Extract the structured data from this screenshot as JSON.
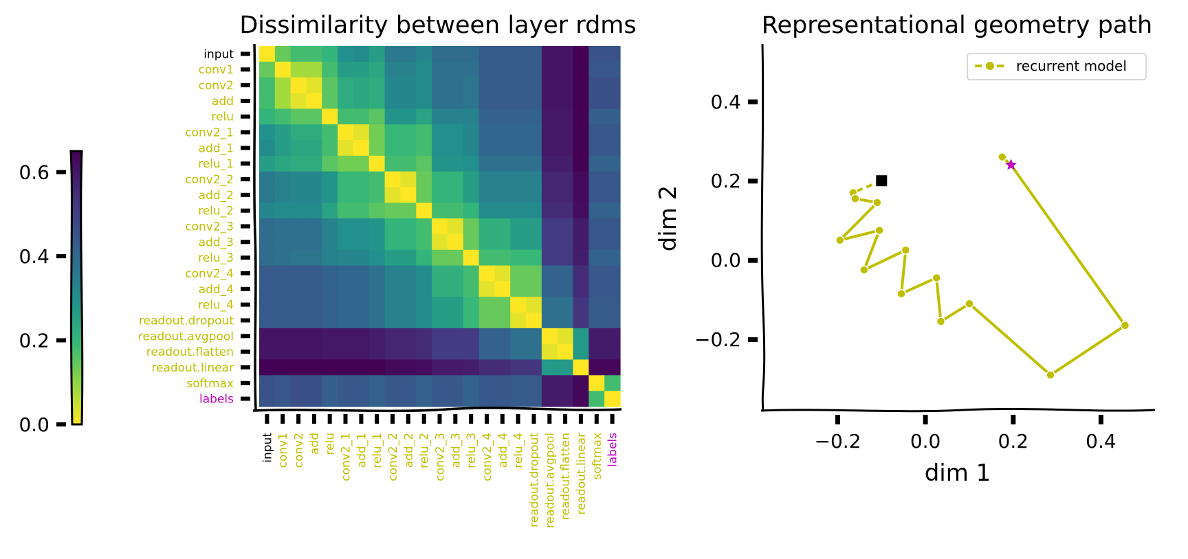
{
  "chart_data": [
    {
      "type": "heatmap",
      "title": "Dissimilarity between layer rdms",
      "labels": [
        "input",
        "conv1",
        "conv2",
        "add",
        "relu",
        "conv2_1",
        "add_1",
        "relu_1",
        "conv2_2",
        "add_2",
        "relu_2",
        "conv2_3",
        "add_3",
        "relu_3",
        "conv2_4",
        "add_4",
        "relu_4",
        "readout.dropout",
        "readout.avgpool",
        "readout.flatten",
        "readout.linear",
        "softmax",
        "labels"
      ],
      "label_colors": [
        "#000000",
        "#bfbf00",
        "#bfbf00",
        "#bfbf00",
        "#bfbf00",
        "#bfbf00",
        "#bfbf00",
        "#bfbf00",
        "#bfbf00",
        "#bfbf00",
        "#bfbf00",
        "#bfbf00",
        "#bfbf00",
        "#bfbf00",
        "#bfbf00",
        "#bfbf00",
        "#bfbf00",
        "#bfbf00",
        "#bfbf00",
        "#bfbf00",
        "#bfbf00",
        "#bfbf00",
        "#bf00bf"
      ],
      "values": [
        [
          0.0,
          0.12,
          0.15,
          0.15,
          0.17,
          0.25,
          0.26,
          0.22,
          0.3,
          0.3,
          0.27,
          0.33,
          0.33,
          0.33,
          0.37,
          0.37,
          0.37,
          0.37,
          0.58,
          0.58,
          0.66,
          0.39,
          0.39
        ],
        [
          0.12,
          0.0,
          0.07,
          0.07,
          0.15,
          0.22,
          0.22,
          0.2,
          0.28,
          0.28,
          0.26,
          0.32,
          0.32,
          0.32,
          0.37,
          0.37,
          0.37,
          0.37,
          0.58,
          0.58,
          0.67,
          0.38,
          0.38
        ],
        [
          0.15,
          0.07,
          0.0,
          0.02,
          0.13,
          0.19,
          0.2,
          0.19,
          0.27,
          0.27,
          0.26,
          0.32,
          0.32,
          0.31,
          0.37,
          0.37,
          0.37,
          0.37,
          0.58,
          0.58,
          0.68,
          0.4,
          0.4
        ],
        [
          0.15,
          0.07,
          0.02,
          0.0,
          0.13,
          0.19,
          0.2,
          0.19,
          0.27,
          0.27,
          0.26,
          0.32,
          0.32,
          0.31,
          0.37,
          0.37,
          0.37,
          0.37,
          0.58,
          0.58,
          0.68,
          0.4,
          0.4
        ],
        [
          0.17,
          0.15,
          0.13,
          0.13,
          0.0,
          0.15,
          0.15,
          0.13,
          0.24,
          0.24,
          0.21,
          0.28,
          0.28,
          0.28,
          0.35,
          0.35,
          0.35,
          0.35,
          0.57,
          0.57,
          0.67,
          0.36,
          0.36
        ],
        [
          0.25,
          0.22,
          0.19,
          0.19,
          0.15,
          0.0,
          0.02,
          0.11,
          0.16,
          0.16,
          0.15,
          0.25,
          0.25,
          0.27,
          0.34,
          0.34,
          0.34,
          0.34,
          0.57,
          0.57,
          0.66,
          0.38,
          0.38
        ],
        [
          0.26,
          0.22,
          0.2,
          0.2,
          0.15,
          0.02,
          0.0,
          0.11,
          0.16,
          0.16,
          0.15,
          0.25,
          0.25,
          0.27,
          0.34,
          0.34,
          0.34,
          0.34,
          0.57,
          0.57,
          0.66,
          0.38,
          0.38
        ],
        [
          0.22,
          0.2,
          0.19,
          0.19,
          0.13,
          0.11,
          0.11,
          0.0,
          0.15,
          0.15,
          0.13,
          0.24,
          0.24,
          0.25,
          0.32,
          0.32,
          0.32,
          0.32,
          0.55,
          0.55,
          0.66,
          0.35,
          0.35
        ],
        [
          0.3,
          0.28,
          0.27,
          0.27,
          0.24,
          0.16,
          0.16,
          0.15,
          0.0,
          0.02,
          0.12,
          0.17,
          0.17,
          0.22,
          0.28,
          0.28,
          0.28,
          0.28,
          0.52,
          0.52,
          0.62,
          0.38,
          0.38
        ],
        [
          0.3,
          0.28,
          0.27,
          0.27,
          0.24,
          0.16,
          0.16,
          0.15,
          0.02,
          0.0,
          0.12,
          0.17,
          0.17,
          0.22,
          0.28,
          0.28,
          0.28,
          0.28,
          0.52,
          0.52,
          0.62,
          0.38,
          0.38
        ],
        [
          0.27,
          0.26,
          0.26,
          0.26,
          0.21,
          0.15,
          0.15,
          0.13,
          0.12,
          0.12,
          0.0,
          0.15,
          0.15,
          0.17,
          0.26,
          0.26,
          0.26,
          0.26,
          0.5,
          0.5,
          0.61,
          0.35,
          0.35
        ],
        [
          0.33,
          0.32,
          0.32,
          0.32,
          0.28,
          0.25,
          0.25,
          0.24,
          0.17,
          0.17,
          0.15,
          0.0,
          0.02,
          0.12,
          0.18,
          0.18,
          0.22,
          0.22,
          0.45,
          0.45,
          0.56,
          0.38,
          0.38
        ],
        [
          0.33,
          0.32,
          0.32,
          0.32,
          0.28,
          0.25,
          0.25,
          0.24,
          0.17,
          0.17,
          0.15,
          0.02,
          0.0,
          0.12,
          0.18,
          0.18,
          0.22,
          0.22,
          0.45,
          0.45,
          0.56,
          0.38,
          0.38
        ],
        [
          0.33,
          0.32,
          0.31,
          0.31,
          0.28,
          0.27,
          0.27,
          0.25,
          0.22,
          0.22,
          0.17,
          0.12,
          0.12,
          0.0,
          0.15,
          0.15,
          0.16,
          0.16,
          0.45,
          0.45,
          0.55,
          0.35,
          0.35
        ],
        [
          0.37,
          0.37,
          0.37,
          0.37,
          0.35,
          0.34,
          0.34,
          0.32,
          0.28,
          0.28,
          0.26,
          0.18,
          0.18,
          0.15,
          0.0,
          0.02,
          0.12,
          0.12,
          0.35,
          0.35,
          0.5,
          0.38,
          0.38
        ],
        [
          0.37,
          0.37,
          0.37,
          0.37,
          0.35,
          0.34,
          0.34,
          0.32,
          0.28,
          0.28,
          0.26,
          0.18,
          0.18,
          0.15,
          0.02,
          0.0,
          0.12,
          0.12,
          0.35,
          0.35,
          0.5,
          0.38,
          0.38
        ],
        [
          0.37,
          0.37,
          0.37,
          0.37,
          0.35,
          0.34,
          0.34,
          0.32,
          0.28,
          0.28,
          0.26,
          0.22,
          0.22,
          0.16,
          0.12,
          0.12,
          0.0,
          0.02,
          0.32,
          0.32,
          0.47,
          0.37,
          0.37
        ],
        [
          0.37,
          0.37,
          0.37,
          0.37,
          0.35,
          0.34,
          0.34,
          0.32,
          0.28,
          0.28,
          0.26,
          0.22,
          0.22,
          0.16,
          0.12,
          0.12,
          0.02,
          0.0,
          0.32,
          0.32,
          0.47,
          0.37,
          0.37
        ],
        [
          0.58,
          0.58,
          0.58,
          0.58,
          0.57,
          0.57,
          0.57,
          0.55,
          0.52,
          0.52,
          0.5,
          0.45,
          0.45,
          0.45,
          0.35,
          0.35,
          0.32,
          0.32,
          0.0,
          0.02,
          0.23,
          0.56,
          0.56
        ],
        [
          0.58,
          0.58,
          0.58,
          0.58,
          0.57,
          0.57,
          0.57,
          0.55,
          0.52,
          0.52,
          0.5,
          0.45,
          0.45,
          0.45,
          0.35,
          0.35,
          0.32,
          0.32,
          0.02,
          0.0,
          0.23,
          0.56,
          0.56
        ],
        [
          0.66,
          0.67,
          0.68,
          0.68,
          0.67,
          0.66,
          0.66,
          0.66,
          0.62,
          0.62,
          0.61,
          0.56,
          0.56,
          0.55,
          0.5,
          0.5,
          0.47,
          0.47,
          0.23,
          0.23,
          0.0,
          0.63,
          0.63
        ],
        [
          0.39,
          0.38,
          0.4,
          0.4,
          0.36,
          0.38,
          0.38,
          0.35,
          0.38,
          0.38,
          0.35,
          0.38,
          0.38,
          0.35,
          0.38,
          0.38,
          0.37,
          0.37,
          0.56,
          0.56,
          0.63,
          0.0,
          0.15
        ],
        [
          0.39,
          0.38,
          0.4,
          0.4,
          0.36,
          0.38,
          0.38,
          0.35,
          0.38,
          0.38,
          0.35,
          0.38,
          0.38,
          0.35,
          0.38,
          0.38,
          0.37,
          0.37,
          0.56,
          0.56,
          0.63,
          0.15,
          0.0
        ]
      ],
      "colormap": "viridis_r",
      "colorbar": {
        "ticks": [
          0.0,
          0.2,
          0.4,
          0.6
        ],
        "tick_labels": [
          "0.0",
          "0.2",
          "0.4",
          "0.6"
        ],
        "range": [
          0.0,
          0.65
        ]
      }
    },
    {
      "type": "line",
      "title": "Representational geometry path",
      "xlabel": "dim 1",
      "ylabel": "dim 2",
      "xlim": [
        -0.37,
        0.52
      ],
      "ylim": [
        -0.38,
        0.54
      ],
      "xticks": [
        -0.2,
        0.0,
        0.2,
        0.4
      ],
      "xtick_labels": [
        "−0.2",
        "0.0",
        "0.2",
        "0.4"
      ],
      "yticks": [
        -0.2,
        0.0,
        0.2,
        0.4
      ],
      "ytick_labels": [
        "−0.2",
        "0.0",
        "0.2",
        "0.4"
      ],
      "legend_position": "top-right",
      "series": [
        {
          "name": "recurrent model",
          "color": "#bfbf00",
          "x": [
            -0.1,
            -0.165,
            -0.16,
            -0.11,
            -0.195,
            -0.105,
            -0.14,
            -0.045,
            -0.055,
            0.025,
            0.035,
            0.1,
            0.285,
            0.455,
            0.195,
            0.175
          ],
          "y": [
            0.2,
            0.17,
            0.155,
            0.145,
            0.05,
            0.075,
            -0.025,
            0.025,
            -0.085,
            -0.045,
            -0.155,
            -0.11,
            -0.29,
            -0.165,
            0.24,
            0.26
          ]
        }
      ],
      "start_marker": {
        "shape": "square",
        "color": "#000000"
      },
      "end_marker": {
        "shape": "star",
        "color": "#bf00bf"
      }
    }
  ]
}
